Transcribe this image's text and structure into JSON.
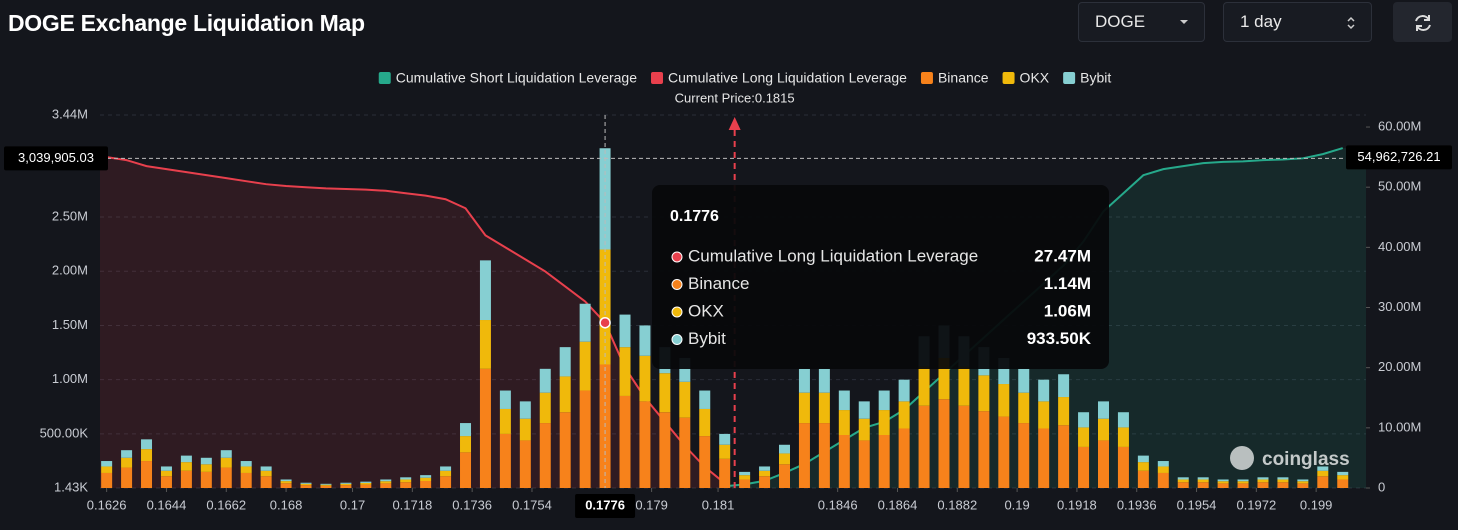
{
  "controls": {
    "symbol": "DOGE",
    "range": "1 day"
  },
  "chart_data": {
    "type": "bar",
    "title": "DOGE Exchange Liquidation Map",
    "watermark": "coinglass",
    "x": [
      0.1626,
      0.1632,
      0.1638,
      0.1644,
      0.165,
      0.1656,
      0.1662,
      0.1668,
      0.1674,
      0.168,
      0.1686,
      0.1692,
      0.1698,
      0.1704,
      0.171,
      0.1716,
      0.1722,
      0.1728,
      0.1734,
      0.174,
      0.1746,
      0.1752,
      0.1758,
      0.1764,
      0.177,
      0.1776,
      0.1782,
      0.1788,
      0.1794,
      0.18,
      0.1806,
      0.1812,
      0.1818,
      0.1824,
      0.183,
      0.1836,
      0.1842,
      0.1848,
      0.1854,
      0.186,
      0.1866,
      0.1872,
      0.1878,
      0.1884,
      0.189,
      0.1896,
      0.1902,
      0.1908,
      0.1914,
      0.192,
      0.1926,
      0.1932,
      0.1938,
      0.1944,
      0.195,
      0.1956,
      0.1962,
      0.1968,
      0.1974,
      0.198,
      0.1986,
      0.1992,
      0.1998
    ],
    "series": [
      {
        "name": "Cumulative Short Liquidation Leverage",
        "color": "#26a98b",
        "type": "line",
        "axis": "y2",
        "values": [
          null,
          null,
          null,
          null,
          null,
          null,
          null,
          null,
          null,
          null,
          null,
          null,
          null,
          null,
          null,
          null,
          null,
          null,
          null,
          null,
          null,
          null,
          null,
          null,
          null,
          null,
          null,
          null,
          null,
          null,
          null,
          300000,
          600000,
          1200000,
          2500000,
          4000000,
          6000000,
          8000000,
          10000000,
          11000000,
          13000000,
          16000000,
          19000000,
          22000000,
          25000000,
          28000000,
          31000000,
          34000000,
          37000000,
          41000000,
          46000000,
          49000000,
          52000000,
          53000000,
          53500000,
          54000000,
          54200000,
          54300000,
          54500000,
          54600000,
          54800000,
          55500000,
          56500000
        ]
      },
      {
        "name": "Cumulative Long Liquidation Leverage",
        "color": "#e8404d",
        "type": "line",
        "axis": "y2",
        "values": [
          55000000,
          54500000,
          53500000,
          53000000,
          52500000,
          52000000,
          51500000,
          51000000,
          50500000,
          50200000,
          50000000,
          49800000,
          49700000,
          49600000,
          49400000,
          49000000,
          48600000,
          48000000,
          46500000,
          42000000,
          40000000,
          38000000,
          36000000,
          33500000,
          31000000,
          27470000,
          20000000,
          15000000,
          11000000,
          7000000,
          3500000,
          800000,
          null,
          null,
          null,
          null,
          null,
          null,
          null,
          null,
          null,
          null,
          null,
          null,
          null,
          null,
          null,
          null,
          null,
          null,
          null,
          null,
          null,
          null,
          null,
          null,
          null,
          null,
          null,
          null,
          null,
          null,
          null
        ]
      },
      {
        "name": "Binance",
        "color": "#f7821b",
        "type": "bar",
        "values": [
          140000,
          190000,
          250000,
          110000,
          160000,
          150000,
          190000,
          140000,
          110000,
          45000,
          28000,
          22000,
          28000,
          33000,
          44000,
          55000,
          66000,
          110000,
          330000,
          1100000,
          500000,
          440000,
          600000,
          700000,
          900000,
          1140000,
          850000,
          800000,
          700000,
          650000,
          480000,
          270000,
          80000,
          110000,
          220000,
          600000,
          600000,
          490000,
          440000,
          490000,
          550000,
          760000,
          820000,
          760000,
          710000,
          660000,
          600000,
          550000,
          580000,
          380000,
          440000,
          380000,
          160000,
          140000,
          55000,
          55000,
          44000,
          44000,
          55000,
          55000,
          44000,
          110000,
          80000
        ]
      },
      {
        "name": "OKX",
        "color": "#f0b90b",
        "type": "bar",
        "values": [
          60000,
          90000,
          110000,
          50000,
          80000,
          70000,
          90000,
          60000,
          50000,
          20000,
          12000,
          10000,
          12000,
          15000,
          20000,
          25000,
          30000,
          50000,
          150000,
          450000,
          230000,
          200000,
          280000,
          330000,
          450000,
          1060000,
          450000,
          420000,
          360000,
          330000,
          250000,
          130000,
          40000,
          50000,
          100000,
          280000,
          280000,
          230000,
          200000,
          230000,
          250000,
          360000,
          380000,
          360000,
          330000,
          300000,
          280000,
          250000,
          260000,
          180000,
          200000,
          180000,
          80000,
          60000,
          25000,
          25000,
          20000,
          20000,
          25000,
          25000,
          20000,
          50000,
          40000
        ]
      },
      {
        "name": "Bybit",
        "color": "#86cfd2",
        "type": "bar",
        "values": [
          50000,
          70000,
          90000,
          40000,
          60000,
          60000,
          70000,
          50000,
          40000,
          15000,
          10000,
          8000,
          10000,
          12000,
          16000,
          20000,
          24000,
          40000,
          120000,
          550000,
          170000,
          160000,
          220000,
          270000,
          350000,
          933500,
          300000,
          280000,
          240000,
          220000,
          170000,
          100000,
          30000,
          40000,
          80000,
          220000,
          220000,
          180000,
          160000,
          180000,
          200000,
          280000,
          300000,
          280000,
          260000,
          240000,
          220000,
          200000,
          210000,
          140000,
          160000,
          140000,
          60000,
          50000,
          20000,
          20000,
          16000,
          16000,
          20000,
          20000,
          16000,
          40000,
          30000
        ]
      }
    ],
    "xlim": [
      0.1624,
      0.2005
    ],
    "xticks": [
      0.1626,
      0.1644,
      0.1662,
      0.168,
      0.17,
      0.1718,
      0.1736,
      0.1754,
      0.179,
      0.181,
      0.1846,
      0.1864,
      0.1882,
      0.19,
      0.1918,
      0.1936,
      0.1954,
      0.1972,
      0.199
    ],
    "ylim": [
      1430,
      3440000
    ],
    "yticks": [
      {
        "value": 1430,
        "label": "1.43K"
      },
      {
        "value": 500000,
        "label": "500.00K"
      },
      {
        "value": 1000000,
        "label": "1.00M"
      },
      {
        "value": 1500000,
        "label": "1.50M"
      },
      {
        "value": 2000000,
        "label": "2.00M"
      },
      {
        "value": 2500000,
        "label": "2.50M"
      },
      {
        "value": 3440000,
        "label": "3.44M"
      }
    ],
    "y2lim": [
      0,
      62000000
    ],
    "y2ticks": [
      0,
      {
        "value": 10000000,
        "label": "10.00M"
      },
      {
        "value": 20000000,
        "label": "20.00M"
      },
      {
        "value": 30000000,
        "label": "30.00M"
      },
      {
        "value": 40000000,
        "label": "40.00M"
      },
      {
        "value": 50000000,
        "label": "50.00M"
      },
      {
        "value": 60000000,
        "label": "60.00M"
      }
    ],
    "grid": true,
    "legend": "top",
    "current_price": 0.1815,
    "current_price_label": "Current Price:0.1815",
    "crosshair": {
      "x": 0.1776,
      "y": {
        "value": 3039905.03,
        "label": "3,039,905.03"
      },
      "y2": {
        "value": 54962726.21,
        "label": "54,962,726.21"
      }
    },
    "tooltip": {
      "title": 0.1776,
      "rows": [
        {
          "name": "Cumulative Long Liquidation Leverage",
          "color": "#e8404d",
          "label": "27.47M"
        },
        {
          "name": "Binance",
          "color": "#f7821b",
          "label": "1.14M"
        },
        {
          "name": "OKX",
          "color": "#f0b90b",
          "label": "1.06M"
        },
        {
          "name": "Bybit",
          "color": "#86cfd2",
          "label": "933.50K"
        }
      ]
    }
  }
}
